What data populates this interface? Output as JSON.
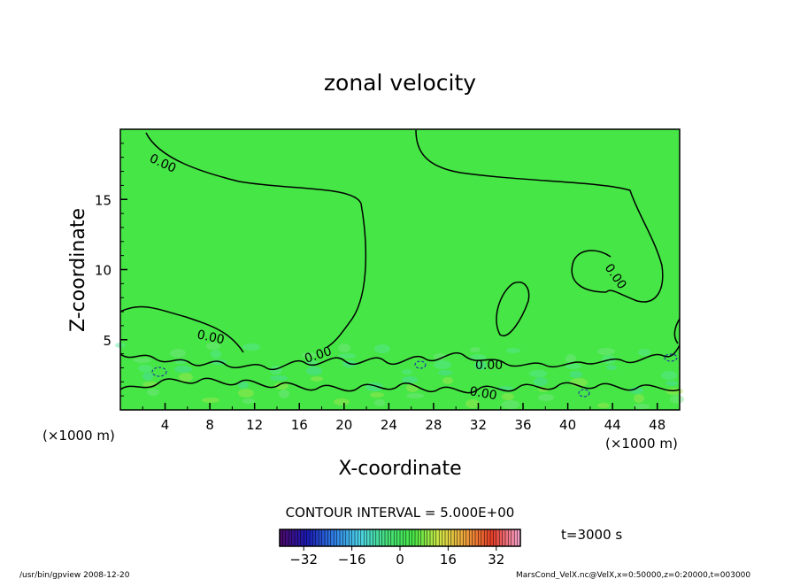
{
  "chart_data": {
    "type": "heatmap",
    "title": "zonal velocity",
    "xlabel": "X-coordinate",
    "ylabel": "Z-coordinate",
    "x_unit": "(×1000 m)",
    "y_unit": "(×1000 m)",
    "xlim": [
      0,
      50
    ],
    "ylim": [
      0,
      20
    ],
    "x_ticks": [
      4,
      8,
      12,
      16,
      20,
      24,
      28,
      32,
      36,
      40,
      44,
      48
    ],
    "y_ticks": [
      5,
      10,
      15
    ],
    "contour_interval_text": "CONTOUR INTERVAL = 5.000E+00",
    "contour_labels": [
      "0.00",
      "0.00",
      "0.00",
      "0.00",
      "0.00",
      "0.00",
      "0.00"
    ],
    "colorbar": {
      "range": [
        -40,
        40
      ],
      "ticks": [
        -32,
        -16,
        0,
        16,
        32
      ],
      "tick_labels": [
        "−32",
        "−16",
        "0",
        "16",
        "32"
      ],
      "colors": [
        "#4b0a6e",
        "#1a1ab4",
        "#2f7fe6",
        "#4cd4e6",
        "#46e07a",
        "#46e646",
        "#d2e646",
        "#f0a03c",
        "#e63c28",
        "#f5a0c8"
      ]
    },
    "fill_color": "#46e646",
    "time_label": "t=3000 s",
    "footer_left": "/usr/bin/gpview   2008-12-20",
    "footer_right": "MarsCond_VelX.nc@VelX,x=0:50000,z=0:20000,t=003000"
  }
}
